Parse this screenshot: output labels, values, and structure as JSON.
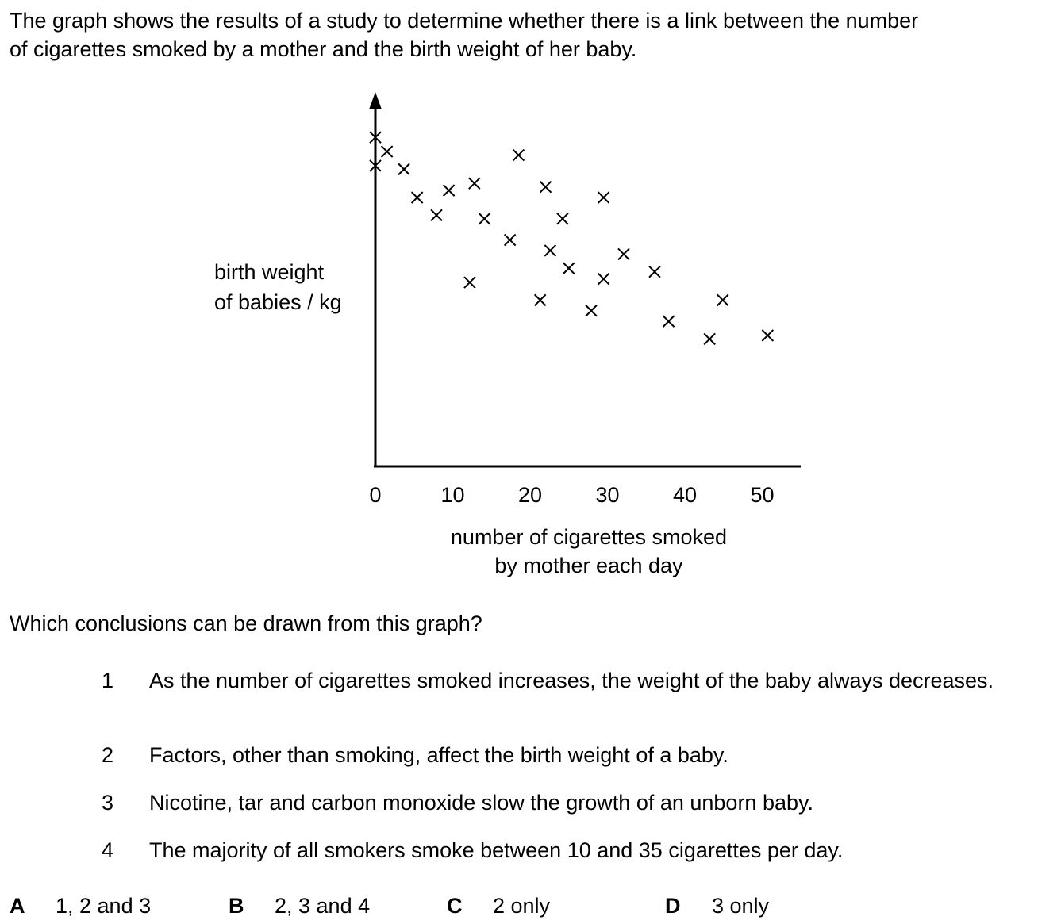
{
  "intro": {
    "line1": "The graph shows the results of a study to determine whether there is a link between the number",
    "line2": "of cigarettes smoked by a mother and the birth weight of her baby."
  },
  "chart_data": {
    "type": "scatter",
    "title": "",
    "xlabel_line1": "number of cigarettes smoked",
    "xlabel_line2": "by mother each day",
    "ylabel_line1": "birth weight",
    "ylabel_line2": "of babies / kg",
    "xlim": [
      0,
      55
    ],
    "x_ticks": [
      0,
      10,
      20,
      30,
      40,
      50
    ],
    "y_ticks": [],
    "grid": false,
    "marker": "x",
    "y_units": "relative (no numeric scale shown on axis)",
    "points": [
      {
        "x": 0,
        "y": 0.93
      },
      {
        "x": 0,
        "y": 0.85
      },
      {
        "x": 1.5,
        "y": 0.89
      },
      {
        "x": 3.7,
        "y": 0.84
      },
      {
        "x": 5.4,
        "y": 0.76
      },
      {
        "x": 7.9,
        "y": 0.71
      },
      {
        "x": 9.5,
        "y": 0.78
      },
      {
        "x": 12.8,
        "y": 0.8
      },
      {
        "x": 12.2,
        "y": 0.52
      },
      {
        "x": 14.1,
        "y": 0.7
      },
      {
        "x": 17.4,
        "y": 0.64
      },
      {
        "x": 18.5,
        "y": 0.88
      },
      {
        "x": 21.3,
        "y": 0.47
      },
      {
        "x": 22.0,
        "y": 0.79
      },
      {
        "x": 22.6,
        "y": 0.61
      },
      {
        "x": 24.2,
        "y": 0.7
      },
      {
        "x": 25.0,
        "y": 0.56
      },
      {
        "x": 27.9,
        "y": 0.44
      },
      {
        "x": 29.5,
        "y": 0.76
      },
      {
        "x": 29.5,
        "y": 0.53
      },
      {
        "x": 32.1,
        "y": 0.6
      },
      {
        "x": 36.1,
        "y": 0.55
      },
      {
        "x": 37.9,
        "y": 0.41
      },
      {
        "x": 43.2,
        "y": 0.36
      },
      {
        "x": 44.9,
        "y": 0.47
      },
      {
        "x": 50.7,
        "y": 0.37
      }
    ]
  },
  "question": "Which conclusions can be drawn from this graph?",
  "statements": [
    {
      "num": "1",
      "text": "As the number of cigarettes smoked increases, the weight of the baby always decreases."
    },
    {
      "num": "2",
      "text": "Factors, other than smoking, affect the birth weight of a baby."
    },
    {
      "num": "3",
      "text": "Nicotine, tar and carbon monoxide slow the growth of an unborn baby."
    },
    {
      "num": "4",
      "text": "The majority of all smokers smoke between 10 and 35 cigarettes per day."
    }
  ],
  "options": [
    {
      "letter": "A",
      "text": "1, 2 and 3"
    },
    {
      "letter": "B",
      "text": "2, 3 and 4"
    },
    {
      "letter": "C",
      "text": "2 only"
    },
    {
      "letter": "D",
      "text": "3 only"
    }
  ]
}
